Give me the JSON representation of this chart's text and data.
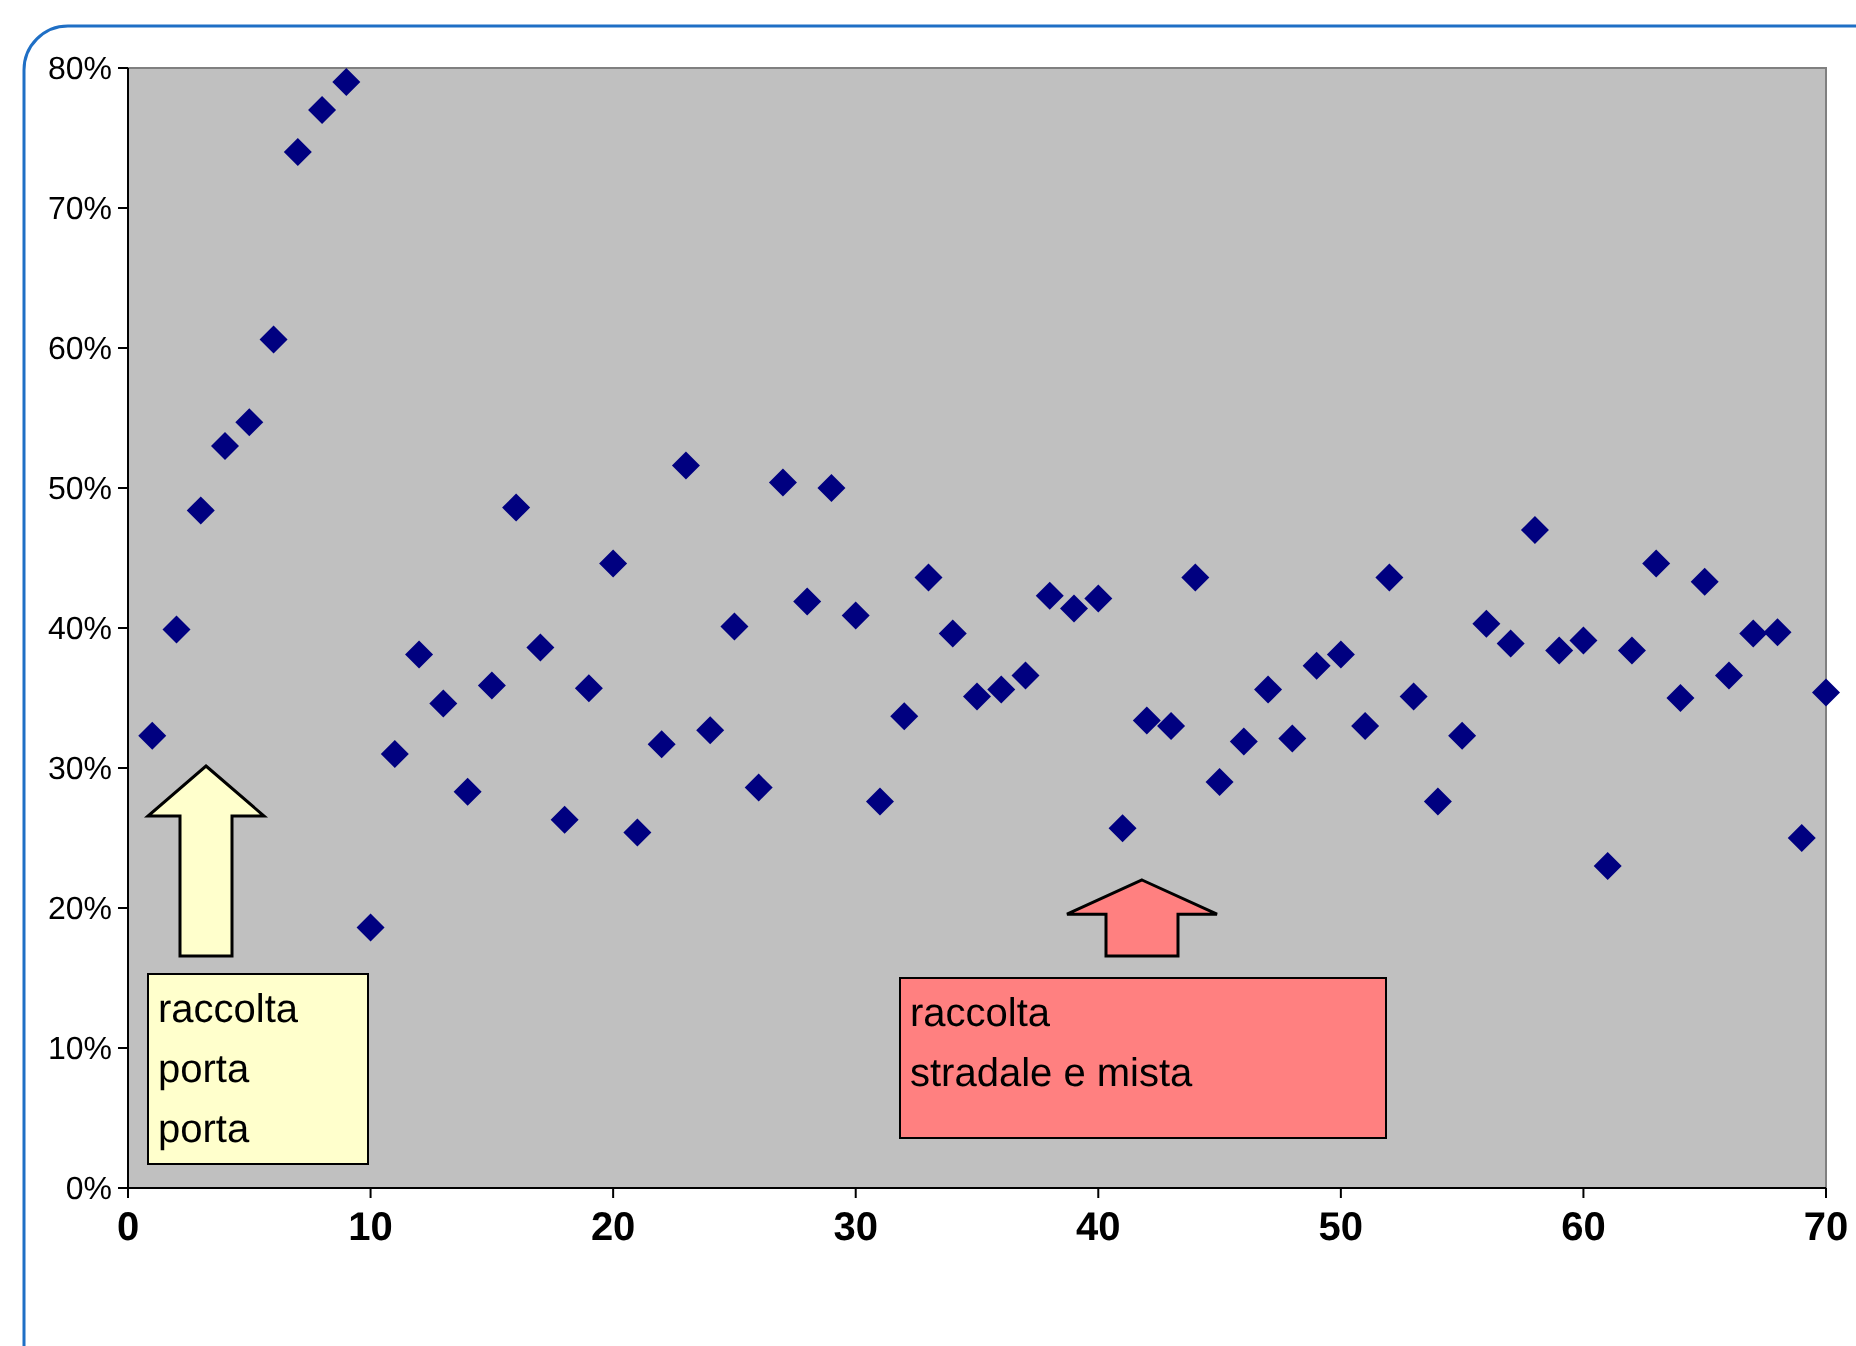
{
  "chart_data": {
    "type": "scatter",
    "x": [
      1,
      2,
      3,
      4,
      5,
      6,
      7,
      8,
      9,
      10,
      11,
      12,
      13,
      14,
      15,
      16,
      17,
      18,
      19,
      20,
      21,
      22,
      23,
      24,
      25,
      26,
      27,
      28,
      29,
      30,
      31,
      32,
      33,
      34,
      35,
      36,
      37,
      38,
      39,
      40,
      41,
      42,
      43,
      44,
      45,
      46,
      47,
      48,
      49,
      50,
      51,
      52,
      53,
      54,
      55,
      56,
      57,
      58,
      59,
      60,
      61,
      62,
      63,
      64,
      65,
      66,
      67,
      68,
      69,
      70
    ],
    "series": [
      {
        "color": "#000080",
        "values": [
          32.3,
          39.9,
          48.4,
          53,
          54.7,
          60.6,
          74,
          77,
          79,
          18.6,
          31,
          38.1,
          34.6,
          28.3,
          35.9,
          48.6,
          38.6,
          26.3,
          35.7,
          44.6,
          25.4,
          31.7,
          51.6,
          32.7,
          40.1,
          28.6,
          50.4,
          41.9,
          50,
          40.9,
          27.6,
          33.7,
          43.6,
          39.6,
          35.1,
          35.6,
          36.6,
          42.3,
          41.4,
          42.1,
          25.7,
          33.4,
          33,
          43.6,
          29,
          31.9,
          35.6,
          32.1,
          37.3,
          38.1,
          33,
          43.6,
          35.1,
          27.6,
          32.3,
          40.3,
          38.9,
          47,
          38.4,
          39.1,
          23,
          38.4,
          44.6,
          35,
          43.3,
          36.6,
          39.6,
          39.7,
          25,
          35.4
        ]
      }
    ],
    "marker": "diamond",
    "grid": false,
    "xlim": [
      0,
      70
    ],
    "xticks": [
      0,
      10,
      20,
      30,
      40,
      50,
      60,
      70
    ],
    "ylim": [
      0,
      80
    ],
    "yticks": [
      {
        "value": 0,
        "label": "0%"
      },
      {
        "value": 10,
        "label": "10%"
      },
      {
        "value": 20,
        "label": "20%"
      },
      {
        "value": 30,
        "label": "30%"
      },
      {
        "value": 40,
        "label": "40%"
      },
      {
        "value": 50,
        "label": "50%"
      },
      {
        "value": 60,
        "label": "60%"
      },
      {
        "value": 70,
        "label": "70%"
      },
      {
        "value": 80,
        "label": "80%"
      }
    ],
    "annotations": [
      "raccolta\nporta\nporta",
      "raccolta\nstradale e mista"
    ]
  }
}
